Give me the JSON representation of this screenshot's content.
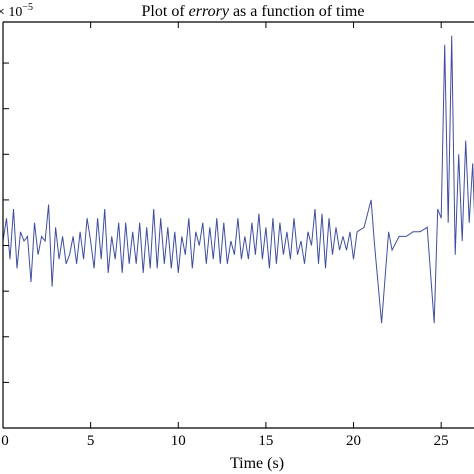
{
  "chart_data": {
    "type": "line",
    "title_prefix": "Plot of ",
    "title_italic": "errory",
    "title_suffix": " as a function of time",
    "xlabel": "Time (s)",
    "ylabel": "",
    "exponent_label": "× 10",
    "exponent_power": "−5",
    "xlim": [
      0,
      27.5
    ],
    "ylim": [
      -4,
      4.9
    ],
    "x_ticks": [
      0,
      5,
      10,
      15,
      20,
      25
    ],
    "x_tick_labels": [
      "0",
      "5",
      "10",
      "15",
      "20",
      "25"
    ],
    "y_ticks": [
      -3,
      -2,
      -1,
      0,
      1,
      2,
      3,
      4
    ],
    "grid": false,
    "series": [
      {
        "color": "#3f4ea0",
        "x": [
          0.0,
          0.2,
          0.4,
          0.6,
          0.8,
          1.0,
          1.2,
          1.4,
          1.6,
          1.8,
          2.0,
          2.2,
          2.4,
          2.6,
          2.8,
          3.0,
          3.2,
          3.4,
          3.6,
          3.8,
          4.0,
          4.2,
          4.4,
          4.6,
          4.8,
          5.0,
          5.2,
          5.4,
          5.6,
          5.8,
          6.0,
          6.2,
          6.4,
          6.6,
          6.8,
          7.0,
          7.2,
          7.4,
          7.6,
          7.8,
          8.0,
          8.2,
          8.4,
          8.6,
          8.8,
          9.0,
          9.2,
          9.4,
          9.6,
          9.8,
          10.0,
          10.2,
          10.4,
          10.6,
          10.8,
          11.0,
          11.2,
          11.4,
          11.6,
          11.8,
          12.0,
          12.2,
          12.4,
          12.6,
          12.8,
          13.0,
          13.2,
          13.4,
          13.6,
          13.8,
          14.0,
          14.2,
          14.4,
          14.6,
          14.8,
          15.0,
          15.2,
          15.4,
          15.6,
          15.8,
          16.0,
          16.2,
          16.4,
          16.6,
          16.8,
          17.0,
          17.2,
          17.4,
          17.6,
          17.8,
          18.0,
          18.2,
          18.4,
          18.6,
          18.8,
          19.0,
          19.2,
          19.4,
          19.6,
          19.8,
          20.0,
          20.2,
          20.6,
          21.0,
          21.2,
          21.6,
          22.0,
          22.2,
          22.6,
          23.0,
          23.4,
          23.8,
          24.2,
          24.6,
          24.8,
          25.0,
          25.2,
          25.4,
          25.6,
          25.8,
          26.0,
          26.2,
          26.4,
          26.6,
          26.8,
          27.0,
          27.2,
          27.4
        ],
        "y": [
          0.1,
          0.6,
          -0.3,
          0.8,
          -0.5,
          0.3,
          0.1,
          0.2,
          -0.8,
          0.5,
          -0.2,
          0.2,
          0.1,
          0.9,
          -0.9,
          0.4,
          -0.3,
          0.2,
          -0.4,
          -0.2,
          0.2,
          -0.4,
          0.3,
          -0.3,
          0.6,
          0.1,
          -0.5,
          0.6,
          -0.3,
          0.8,
          -0.6,
          0.2,
          -0.3,
          0.5,
          -0.6,
          0.5,
          -0.4,
          0.3,
          -0.4,
          0.5,
          -0.6,
          0.4,
          -0.5,
          0.8,
          -0.5,
          0.6,
          -0.4,
          0.4,
          -0.5,
          0.3,
          -0.6,
          0.2,
          -0.2,
          0.6,
          -0.5,
          0.3,
          0.0,
          0.5,
          -0.4,
          0.4,
          -0.3,
          0.6,
          -0.4,
          0.5,
          -0.4,
          0.1,
          -0.2,
          0.6,
          -0.3,
          0.2,
          -0.3,
          0.5,
          -0.2,
          0.7,
          -0.3,
          0.4,
          -0.5,
          0.6,
          -0.4,
          0.5,
          -0.2,
          0.3,
          -0.3,
          0.6,
          -0.2,
          0.1,
          -0.4,
          0.3,
          0.0,
          0.8,
          -0.4,
          0.7,
          -0.5,
          0.6,
          -0.2,
          0.4,
          -0.1,
          0.2,
          -0.1,
          0.3,
          -0.3,
          0.3,
          0.4,
          1.0,
          0.0,
          -1.7,
          0.3,
          -0.1,
          0.2,
          0.2,
          0.3,
          0.3,
          0.4,
          -1.7,
          0.8,
          0.6,
          4.4,
          0.5,
          4.6,
          -0.2,
          2.0,
          0.1,
          2.3,
          0.5,
          1.8,
          -0.4,
          1.6,
          1.0
        ]
      }
    ]
  }
}
